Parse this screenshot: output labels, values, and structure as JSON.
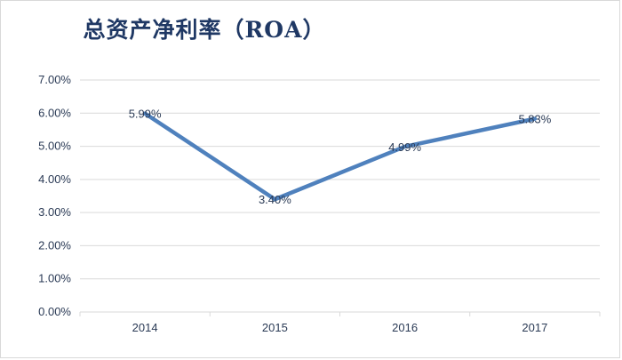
{
  "chart_data": {
    "type": "line",
    "title": "总资产净利率（ROA）",
    "categories": [
      "2014",
      "2015",
      "2016",
      "2017"
    ],
    "series": [
      {
        "values": [
          5.99,
          3.4,
          4.99,
          5.83
        ],
        "labels": [
          "5.99%",
          "3.40%",
          "4.99%",
          "5.83%"
        ]
      }
    ],
    "yticks": [
      "0.00%",
      "1.00%",
      "2.00%",
      "3.00%",
      "4.00%",
      "5.00%",
      "6.00%",
      "7.00%"
    ],
    "ylim": [
      0,
      7
    ],
    "grid": true,
    "line_color": "#4f81bd",
    "grid_color": "#d9d9d9"
  }
}
